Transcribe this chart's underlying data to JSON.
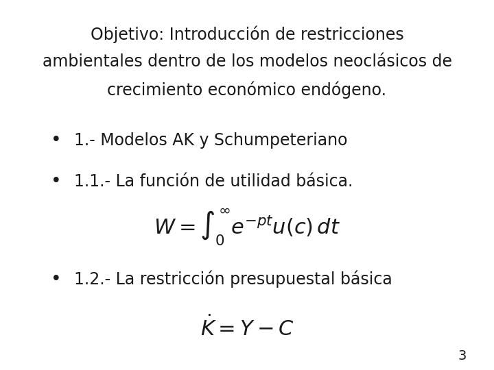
{
  "background_color": "#ffffff",
  "title_lines": [
    "Objetivo: Introducción de restricciones",
    "ambientales dentro de los modelos neoclásicos de",
    "crecimiento económico endógeno."
  ],
  "bullet1": "1.- Modelos AK y Schumpeteriano",
  "bullet2": "1.1.- La función de utilidad básica.",
  "formula1": "W = \\int_0^{\\infty} e^{-pt} u(c)\\,dt",
  "bullet3": "1.2.- La restricción presupuestal básica",
  "formula2": "\\dot{K} = Y - C",
  "page_number": "3",
  "font_color": "#1a1a1a",
  "title_fontsize": 17,
  "bullet_fontsize": 17,
  "formula_fontsize": 22,
  "page_fontsize": 14
}
